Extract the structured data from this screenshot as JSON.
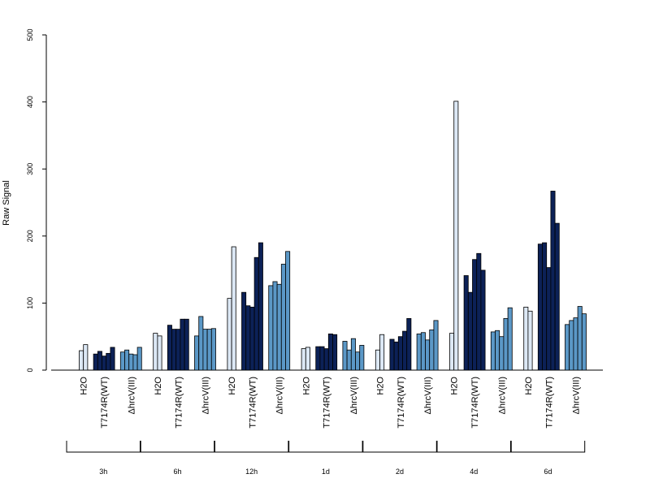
{
  "chart_data": {
    "type": "bar",
    "title": "",
    "ylabel": "Raw Signal",
    "xlabel": "",
    "ylim": [
      0,
      500
    ],
    "yticks": [
      0,
      100,
      200,
      300,
      400,
      500
    ],
    "grid": false,
    "legend": "none",
    "group_labels": [
      "H2O",
      "T7174R(WT)",
      "ΔhrcV(III)"
    ],
    "colors": {
      "H2O": "#dce8f5",
      "T7174R(WT)": "#0c2157",
      "ΔhrcV(III)": "#5b98c7"
    },
    "timepoints": [
      {
        "label": "3h",
        "H2O": [
          29,
          38
        ],
        "T7174R(WT)": [
          24,
          28,
          21,
          25,
          34
        ],
        "ΔhrcV(III)": [
          27,
          30,
          24,
          23,
          34
        ]
      },
      {
        "label": "6h",
        "H2O": [
          55,
          51
        ],
        "T7174R(WT)": [
          67,
          61,
          61,
          76,
          76
        ],
        "ΔhrcV(III)": [
          51,
          80,
          61,
          61,
          62
        ]
      },
      {
        "label": "12h",
        "H2O": [
          107,
          184
        ],
        "T7174R(WT)": [
          116,
          96,
          94,
          168,
          190
        ],
        "ΔhrcV(III)": [
          126,
          132,
          128,
          158,
          177
        ]
      },
      {
        "label": "1d",
        "H2O": [
          32,
          34
        ],
        "T7174R(WT)": [
          35,
          35,
          32,
          54,
          53
        ],
        "ΔhrcV(III)": [
          43,
          30,
          47,
          27,
          37
        ]
      },
      {
        "label": "2d",
        "H2O": [
          30,
          53
        ],
        "T7174R(WT)": [
          46,
          42,
          50,
          58,
          77
        ],
        "ΔhrcV(III)": [
          54,
          56,
          45,
          60,
          74
        ]
      },
      {
        "label": "4d",
        "H2O": [
          55,
          401
        ],
        "T7174R(WT)": [
          141,
          116,
          165,
          174,
          149
        ],
        "ΔhrcV(III)": [
          57,
          59,
          50,
          77,
          93
        ]
      },
      {
        "label": "6d",
        "H2O": [
          94,
          88
        ],
        "T7174R(WT)": [
          188,
          190,
          153,
          267,
          219
        ],
        "ΔhrcV(III)": [
          68,
          74,
          78,
          95,
          84
        ]
      }
    ]
  }
}
